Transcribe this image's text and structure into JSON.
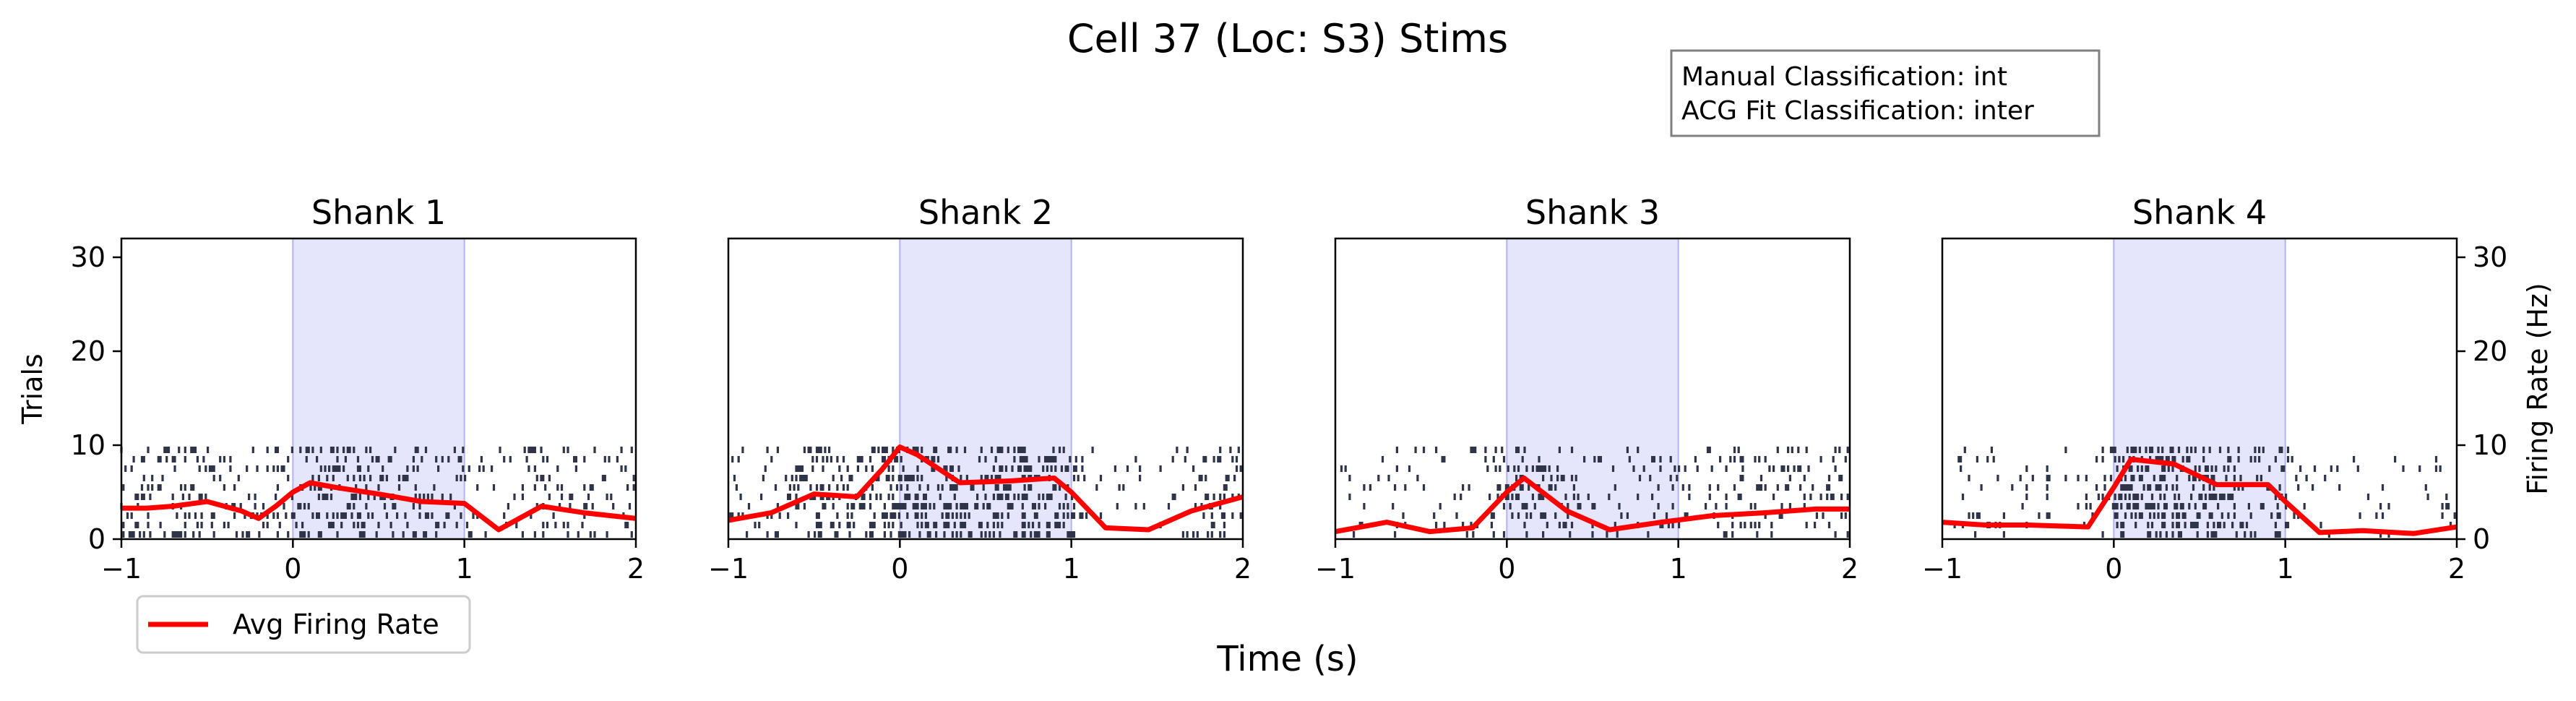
{
  "figure": {
    "title": "Cell 37 (Loc: S3) Stims",
    "xlabel": "Time (s)",
    "ylabel_left": "Trials",
    "ylabel_right": "Firing Rate (Hz)",
    "info_box": [
      "Manual Classification: int",
      "ACG Fit Classification: inter"
    ],
    "legend": {
      "label": "Avg Firing Rate",
      "color": "#ff0000",
      "placement": "lower-left, below first panel"
    },
    "colors": {
      "raster": "#2f3448",
      "stim": "#e5e5fb",
      "stim_edge": "#b3b3f0",
      "rate": "#ff0000"
    }
  },
  "chart_data": [
    {
      "type": "line",
      "title": "Shank 1",
      "xlim": [
        -1,
        2
      ],
      "ylim": [
        0,
        32
      ],
      "xticks": [
        "−1",
        "0",
        "1",
        "2"
      ],
      "yticks": [
        "0",
        "10",
        "20",
        "30"
      ],
      "stim_window": [
        0,
        1
      ],
      "raster_trials": 10,
      "x": [
        -1,
        -0.85,
        -0.7,
        -0.5,
        -0.3,
        -0.2,
        -0.1,
        0,
        0.1,
        0.25,
        0.5,
        0.75,
        1,
        1.2,
        1.45,
        1.7,
        2
      ],
      "y": [
        3.3,
        3.3,
        3.5,
        4.0,
        3.0,
        2.2,
        3.5,
        5.0,
        6.0,
        5.5,
        4.8,
        4.0,
        3.8,
        1.0,
        3.5,
        2.8,
        2.2
      ]
    },
    {
      "type": "line",
      "title": "Shank 2",
      "xlim": [
        -1,
        2
      ],
      "ylim": [
        0,
        32
      ],
      "xticks": [
        "−1",
        "0",
        "1",
        "2"
      ],
      "yticks": [],
      "stim_window": [
        0,
        1
      ],
      "raster_trials": 10,
      "x": [
        -1,
        -0.75,
        -0.5,
        -0.25,
        -0.1,
        0,
        0.1,
        0.35,
        0.65,
        0.9,
        1,
        1.2,
        1.45,
        1.7,
        2
      ],
      "y": [
        2.0,
        2.8,
        4.8,
        4.5,
        7.5,
        9.8,
        9.0,
        6.0,
        6.2,
        6.5,
        5.0,
        1.2,
        1.0,
        3.0,
        4.5
      ]
    },
    {
      "type": "line",
      "title": "Shank 3",
      "xlim": [
        -1,
        2
      ],
      "ylim": [
        0,
        32
      ],
      "xticks": [
        "−1",
        "0",
        "1",
        "2"
      ],
      "yticks": [],
      "stim_window": [
        0,
        1
      ],
      "raster_trials": 10,
      "x": [
        -1,
        -0.7,
        -0.45,
        -0.2,
        0,
        0.1,
        0.35,
        0.6,
        0.9,
        1.2,
        1.5,
        1.8,
        2
      ],
      "y": [
        0.8,
        1.8,
        0.8,
        1.2,
        5.0,
        6.5,
        3.0,
        1.0,
        1.8,
        2.5,
        2.8,
        3.2,
        3.2
      ]
    },
    {
      "type": "line",
      "title": "Shank 4",
      "xlim": [
        -1,
        2
      ],
      "ylim": [
        0,
        32
      ],
      "xticks": [
        "−1",
        "0",
        "1",
        "2"
      ],
      "yticks": [
        "0",
        "10",
        "20",
        "30"
      ],
      "stim_window": [
        0,
        1
      ],
      "raster_trials": 10,
      "x": [
        -1,
        -0.75,
        -0.5,
        -0.15,
        0,
        0.1,
        0.35,
        0.6,
        0.9,
        1,
        1.2,
        1.45,
        1.75,
        2
      ],
      "y": [
        1.8,
        1.5,
        1.5,
        1.3,
        5.5,
        8.5,
        8.0,
        5.8,
        5.8,
        4.0,
        0.7,
        0.9,
        0.6,
        1.3
      ]
    }
  ]
}
